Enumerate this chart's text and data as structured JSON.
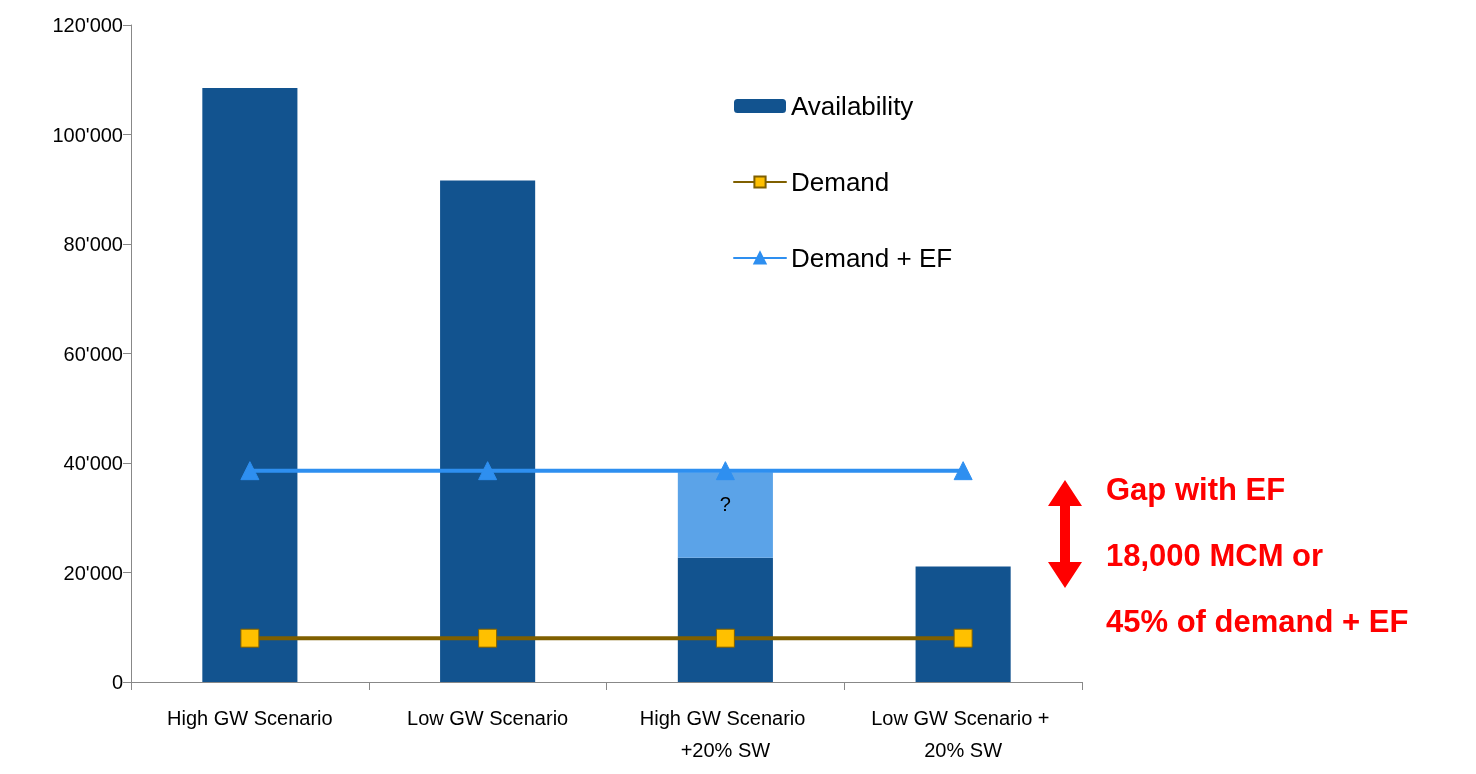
{
  "chart_data": {
    "type": "bar",
    "stacked": true,
    "categories": [
      "High GW Scenario",
      "Low GW Scenario",
      "High GW Scenario +20% SW",
      "Low GW Scenario + 20% SW"
    ],
    "series": [
      {
        "name": "Availability",
        "color": "#12538f",
        "values": [
          108500,
          91600,
          22700,
          21100
        ]
      },
      {
        "color": "#5ba3e8",
        "values": [
          null,
          null,
          15600,
          null
        ]
      },
      {
        "name": "Demand",
        "type": "line",
        "color": "#7f5f00",
        "marker": "square",
        "values": [
          8000,
          8000,
          8000,
          8000
        ]
      },
      {
        "name": "Demand + EF",
        "type": "line",
        "color": "#2e8ff0",
        "marker": "triangle",
        "values": [
          38600,
          38600,
          38600,
          38600
        ]
      }
    ],
    "ylim": [
      0,
      120000
    ],
    "yticks": [
      {
        "value": 0,
        "label": "0"
      },
      {
        "value": 20000,
        "label": "20'000"
      },
      {
        "value": 40000,
        "label": "40'000"
      },
      {
        "value": 60000,
        "label": "60'000"
      },
      {
        "value": 80000,
        "label": "80'000"
      },
      {
        "value": 100000,
        "label": "100'000"
      },
      {
        "value": 120000,
        "label": "120'000"
      }
    ],
    "grid": false,
    "legend": "top right",
    "annotations": [
      "?",
      "Gap with EF",
      "18,000 MCM or",
      "45% of demand + EF"
    ]
  }
}
